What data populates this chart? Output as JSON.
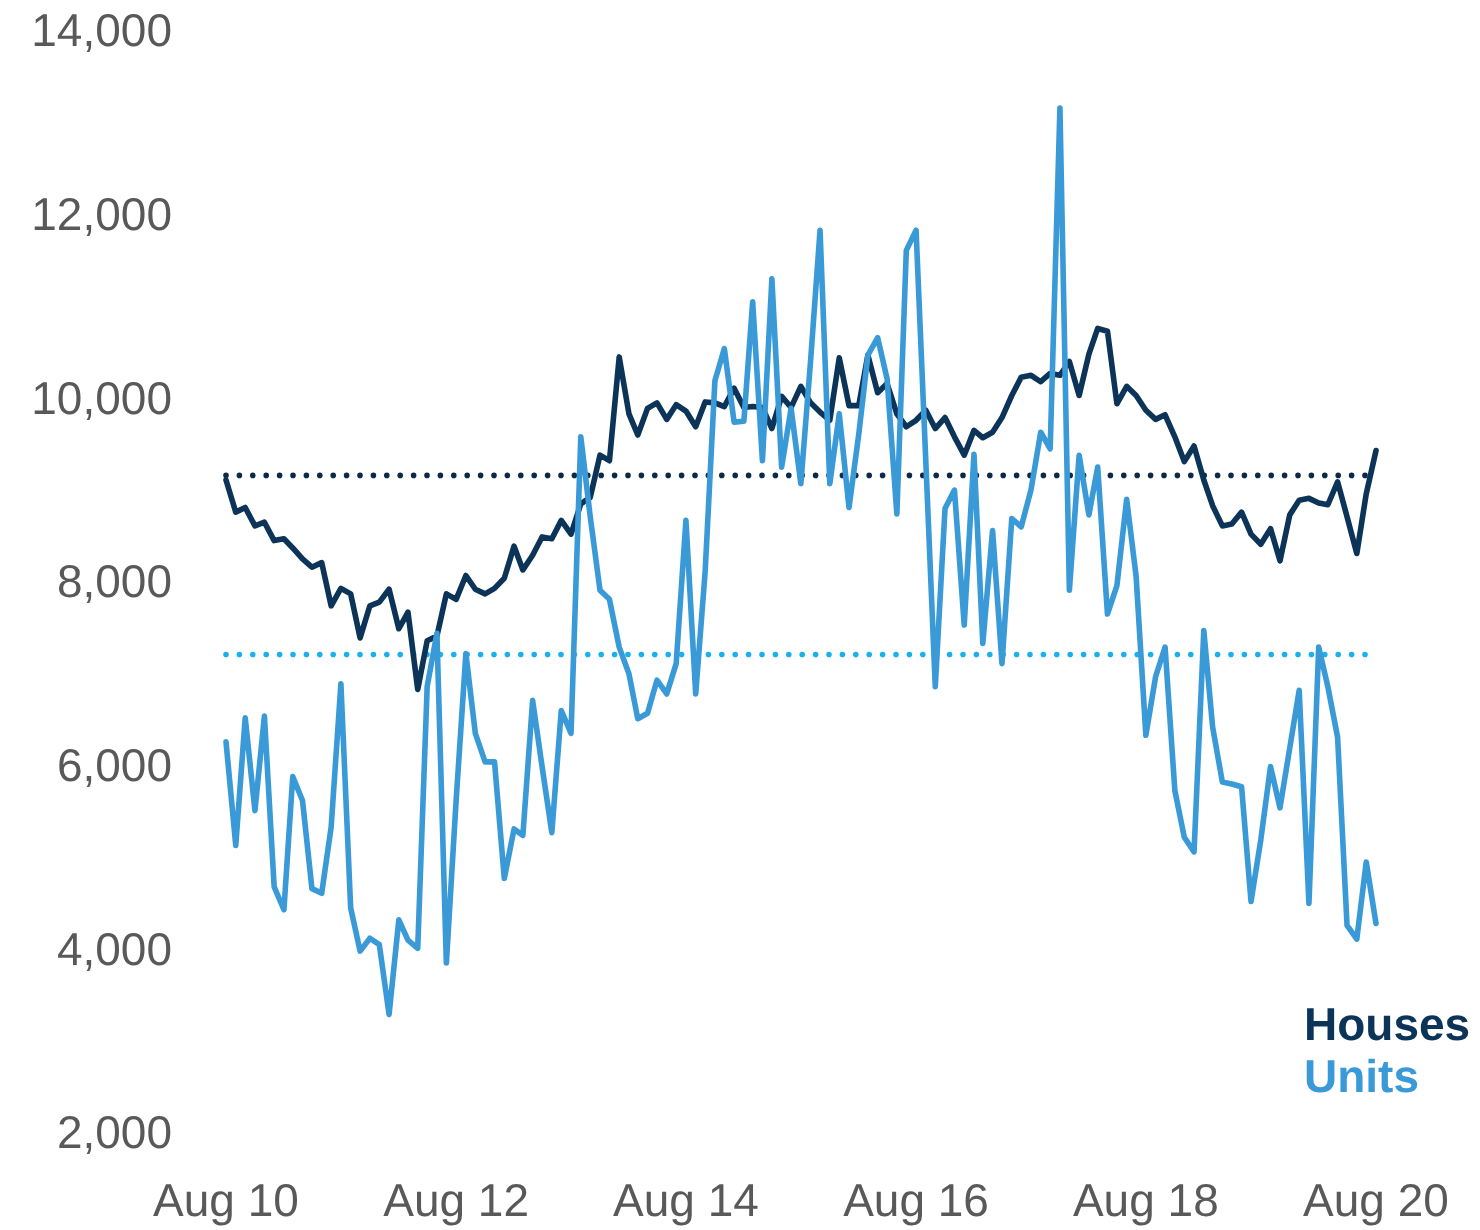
{
  "chart_data": {
    "type": "line",
    "x": [
      "2010-08",
      "2010-09",
      "2010-10",
      "2010-11",
      "2010-12",
      "2011-01",
      "2011-02",
      "2011-03",
      "2011-04",
      "2011-05",
      "2011-06",
      "2011-07",
      "2011-08",
      "2011-09",
      "2011-10",
      "2011-11",
      "2011-12",
      "2012-01",
      "2012-02",
      "2012-03",
      "2012-04",
      "2012-05",
      "2012-06",
      "2012-07",
      "2012-08",
      "2012-09",
      "2012-10",
      "2012-11",
      "2012-12",
      "2013-01",
      "2013-02",
      "2013-03",
      "2013-04",
      "2013-05",
      "2013-06",
      "2013-07",
      "2013-08",
      "2013-09",
      "2013-10",
      "2013-11",
      "2013-12",
      "2014-01",
      "2014-02",
      "2014-03",
      "2014-04",
      "2014-05",
      "2014-06",
      "2014-07",
      "2014-08",
      "2014-09",
      "2014-10",
      "2014-11",
      "2014-12",
      "2015-01",
      "2015-02",
      "2015-03",
      "2015-04",
      "2015-05",
      "2015-06",
      "2015-07",
      "2015-08",
      "2015-09",
      "2015-10",
      "2015-11",
      "2015-12",
      "2016-01",
      "2016-02",
      "2016-03",
      "2016-04",
      "2016-05",
      "2016-06",
      "2016-07",
      "2016-08",
      "2016-09",
      "2016-10",
      "2016-11",
      "2016-12",
      "2017-01",
      "2017-02",
      "2017-03",
      "2017-04",
      "2017-05",
      "2017-06",
      "2017-07",
      "2017-08",
      "2017-09",
      "2017-10",
      "2017-11",
      "2017-12",
      "2018-01",
      "2018-02",
      "2018-03",
      "2018-04",
      "2018-05",
      "2018-06",
      "2018-07",
      "2018-08",
      "2018-09",
      "2018-10",
      "2018-11",
      "2018-12",
      "2019-01",
      "2019-02",
      "2019-03",
      "2019-04",
      "2019-05",
      "2019-06",
      "2019-07",
      "2019-08",
      "2019-09",
      "2019-10",
      "2019-11",
      "2019-12",
      "2020-01",
      "2020-02",
      "2020-03",
      "2020-04",
      "2020-05",
      "2020-06",
      "2020-07",
      "2020-08"
    ],
    "series": [
      {
        "name": "Houses",
        "color": "#0c3358",
        "values": [
          9100,
          8750,
          8800,
          8600,
          8640,
          8440,
          8460,
          8360,
          8240,
          8150,
          8200,
          7730,
          7920,
          7860,
          7380,
          7730,
          7770,
          7910,
          7480,
          7660,
          6820,
          7350,
          7400,
          7860,
          7800,
          8060,
          7910,
          7860,
          7920,
          8030,
          8380,
          8120,
          8280,
          8480,
          8460,
          8660,
          8510,
          8840,
          8910,
          9370,
          9310,
          10440,
          9820,
          9590,
          9880,
          9940,
          9760,
          9920,
          9850,
          9680,
          9950,
          9940,
          9900,
          10100,
          9890,
          9900,
          9890,
          9660,
          10010,
          9890,
          10120,
          9940,
          9840,
          9750,
          10430,
          9910,
          9910,
          10460,
          10050,
          10150,
          9820,
          9680,
          9750,
          9860,
          9660,
          9780,
          9570,
          9370,
          9640,
          9560,
          9620,
          9780,
          10020,
          10220,
          10240,
          10170,
          10260,
          10240,
          10390,
          10020,
          10470,
          10750,
          10720,
          9930,
          10120,
          10020,
          9860,
          9760,
          9810,
          9570,
          9300,
          9470,
          9100,
          8820,
          8600,
          8620,
          8750,
          8510,
          8400,
          8570,
          8220,
          8720,
          8880,
          8900,
          8850,
          8830,
          9080,
          8700,
          8300,
          8950,
          9420
        ]
      },
      {
        "name": "Units",
        "color": "#3a9ad8",
        "values": [
          6250,
          5120,
          6510,
          5500,
          6530,
          4670,
          4420,
          5870,
          5610,
          4650,
          4600,
          5320,
          6880,
          4440,
          3970,
          4110,
          4040,
          3280,
          4310,
          4090,
          4000,
          6850,
          7430,
          3840,
          5610,
          7210,
          6340,
          6030,
          6030,
          4760,
          5300,
          5230,
          6700,
          5980,
          5260,
          6590,
          6340,
          9570,
          8700,
          7900,
          7800,
          7280,
          6990,
          6500,
          6560,
          6920,
          6770,
          7100,
          8660,
          6770,
          8100,
          10180,
          10530,
          9730,
          9740,
          11040,
          9310,
          11290,
          9240,
          9880,
          9060,
          10400,
          11820,
          9060,
          9820,
          8800,
          9600,
          10460,
          10650,
          10200,
          8730,
          11600,
          11820,
          9300,
          6850,
          8790,
          8990,
          7520,
          9380,
          7320,
          8550,
          7100,
          8680,
          8590,
          8990,
          9620,
          9440,
          13150,
          7900,
          9370,
          8720,
          9240,
          7640,
          7950,
          8890,
          8050,
          6320,
          6960,
          7280,
          5720,
          5210,
          5050,
          7460,
          6410,
          5810,
          5790,
          5760,
          4510,
          5180,
          5980,
          5530,
          6180,
          6810,
          4490,
          7280,
          6850,
          6300,
          4250,
          4100,
          4940,
          4270
        ]
      }
    ],
    "xlim": [
      "2010-08",
      "2020-08"
    ],
    "xticks": [
      {
        "value": "2010-08",
        "label": "Aug 10"
      },
      {
        "value": "2012-08",
        "label": "Aug 12"
      },
      {
        "value": "2014-08",
        "label": "Aug 14"
      },
      {
        "value": "2016-08",
        "label": "Aug 16"
      },
      {
        "value": "2018-08",
        "label": "Aug 18"
      },
      {
        "value": "2020-08",
        "label": "Aug 20"
      }
    ],
    "ylim": [
      2000,
      14000
    ],
    "yticks": [
      {
        "value": 2000,
        "label": "2,000"
      },
      {
        "value": 4000,
        "label": "4,000"
      },
      {
        "value": 6000,
        "label": "6,000"
      },
      {
        "value": 8000,
        "label": "8,000"
      },
      {
        "value": 10000,
        "label": "10,000"
      },
      {
        "value": 12000,
        "label": "12,000"
      },
      {
        "value": 14000,
        "label": "14,000"
      }
    ],
    "ref_lines": [
      {
        "axis": "y",
        "value": 9150,
        "color": "#0c2a48",
        "line_style": "dotted"
      },
      {
        "axis": "y",
        "value": 7200,
        "color": "#1ab0ee",
        "line_style": "dotted"
      }
    ],
    "legend": "bottom right"
  }
}
